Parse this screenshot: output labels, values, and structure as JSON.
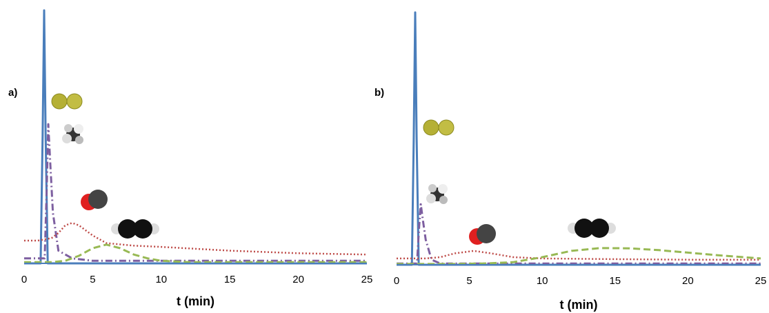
{
  "chart_data": [
    {
      "type": "line",
      "label": "a)",
      "xlabel": "t (min)",
      "xlim": [
        0,
        25
      ],
      "xticks": [
        0,
        5,
        10,
        15,
        20,
        25
      ],
      "ylim": [
        0,
        100
      ],
      "series": [
        {
          "color": "#4a7ebb",
          "style": "solid",
          "x": [
            0,
            1.2,
            1.35,
            1.46,
            1.57,
            1.72,
            25
          ],
          "values": [
            0,
            0,
            50,
            100,
            50,
            0,
            0
          ]
        },
        {
          "color": "#7d5fa0",
          "style": "dashdot",
          "x": [
            0,
            1.5,
            1.65,
            1.76,
            1.9,
            2.1,
            2.5,
            3.5,
            5,
            10,
            25
          ],
          "values": [
            2,
            2,
            30,
            55,
            40,
            20,
            5,
            2,
            1,
            1,
            1
          ]
        },
        {
          "color": "#be4b48",
          "style": "dotted",
          "x": [
            0,
            1,
            2,
            2.5,
            3,
            3.5,
            4,
            5,
            6,
            8,
            10,
            15,
            20,
            25
          ],
          "values": [
            9,
            9,
            10,
            12,
            15,
            16,
            15,
            11,
            8,
            7,
            6.5,
            5,
            4,
            3.5
          ]
        },
        {
          "color": "#98b954",
          "style": "dashed",
          "x": [
            0,
            2,
            3,
            4,
            5,
            6,
            7,
            8,
            9,
            10,
            12,
            25
          ],
          "values": [
            0.5,
            0.5,
            1,
            3,
            6,
            7.4,
            6,
            3.5,
            2,
            1,
            0.5,
            0.5
          ]
        }
      ]
    },
    {
      "type": "line",
      "label": "b)",
      "xlabel": "t (min)",
      "xlim": [
        0,
        25
      ],
      "xticks": [
        0,
        5,
        10,
        15,
        20,
        25
      ],
      "ylim": [
        0,
        100
      ],
      "series": [
        {
          "color": "#4a7ebb",
          "style": "solid",
          "x": [
            0,
            1.05,
            1.18,
            1.28,
            1.38,
            1.52,
            25
          ],
          "values": [
            0,
            0,
            50,
            100,
            50,
            0,
            0
          ]
        },
        {
          "color": "#7d5fa0",
          "style": "dashdot",
          "x": [
            0,
            1.4,
            1.55,
            1.66,
            1.8,
            2.0,
            2.4,
            3,
            25
          ],
          "values": [
            0.5,
            0.5,
            15,
            24,
            18,
            10,
            2,
            0.5,
            0.5
          ]
        },
        {
          "color": "#be4b48",
          "style": "dotted",
          "x": [
            0,
            2,
            3,
            4,
            5.3,
            6.5,
            8,
            10,
            15,
            20,
            25
          ],
          "values": [
            2.5,
            2.5,
            3,
            4.5,
            5.5,
            4.5,
            3,
            2.5,
            2.2,
            2,
            2
          ]
        },
        {
          "color": "#98b954",
          "style": "dashed",
          "x": [
            0,
            4,
            6,
            8,
            10,
            12,
            14,
            16,
            18,
            20,
            22,
            25
          ],
          "values": [
            0.3,
            0.3,
            0.5,
            1,
            3,
            5.5,
            6.6,
            6.5,
            5.8,
            4.8,
            3.8,
            2.5
          ]
        }
      ]
    }
  ]
}
